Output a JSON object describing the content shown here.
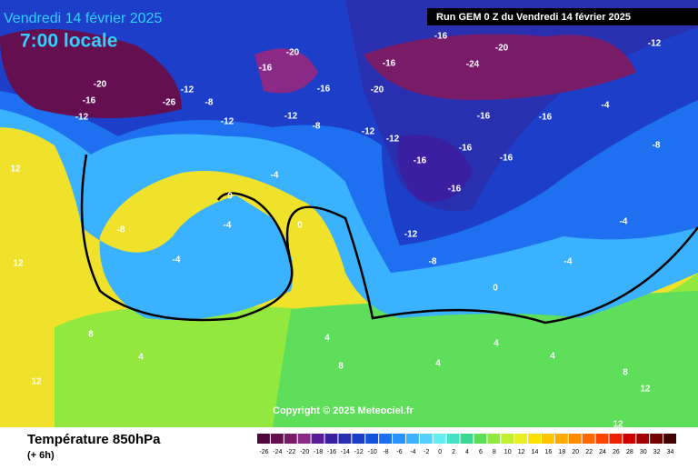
{
  "header": {
    "date": "Vendredi 14 février 2025",
    "time": "7:00 locale",
    "run": "Run GEM 0 Z du Vendredi 14 février 2025"
  },
  "copyright": "Copyright © 2025 Meteociel.fr",
  "footer": {
    "title": "Température 850hPa",
    "subtitle": "(+ 6h)"
  },
  "legend": {
    "ticks": [
      -26,
      -24,
      -22,
      -20,
      -18,
      -16,
      -14,
      -12,
      -10,
      -8,
      -6,
      -4,
      -2,
      0,
      2,
      4,
      6,
      8,
      10,
      12,
      14,
      16,
      18,
      20,
      22,
      24,
      26,
      28,
      30,
      32,
      34
    ],
    "colors": [
      "#50083c",
      "#641050",
      "#781c68",
      "#8a2a86",
      "#5a1c96",
      "#3a20a0",
      "#2830b0",
      "#1c3ec8",
      "#1454dc",
      "#1e70f0",
      "#2a92ff",
      "#3ab2ff",
      "#52d0ff",
      "#64eef2",
      "#44e2c4",
      "#3ad890",
      "#5ede5a",
      "#92e83e",
      "#c2f030",
      "#e8f024",
      "#ffe000",
      "#ffc600",
      "#ffaa00",
      "#ff8c00",
      "#ff6a00",
      "#ff4600",
      "#ee2000",
      "#cc0000",
      "#a00000",
      "#720000",
      "#420000"
    ]
  },
  "map_labels": [
    -20,
    -16,
    -12,
    -26,
    -12,
    -8,
    -12,
    -16,
    -20,
    -12,
    -8,
    -16,
    -12,
    -12,
    -16,
    -20,
    -16,
    -24,
    -20,
    -16,
    -16,
    -16,
    -16,
    -16,
    -16,
    -12,
    -8,
    -4,
    -4,
    -8,
    -12,
    -4,
    -8,
    -4,
    -4,
    0,
    0,
    -4,
    12,
    12,
    8,
    4,
    4,
    8,
    4,
    0,
    4,
    4,
    8,
    12,
    12,
    12
  ]
}
